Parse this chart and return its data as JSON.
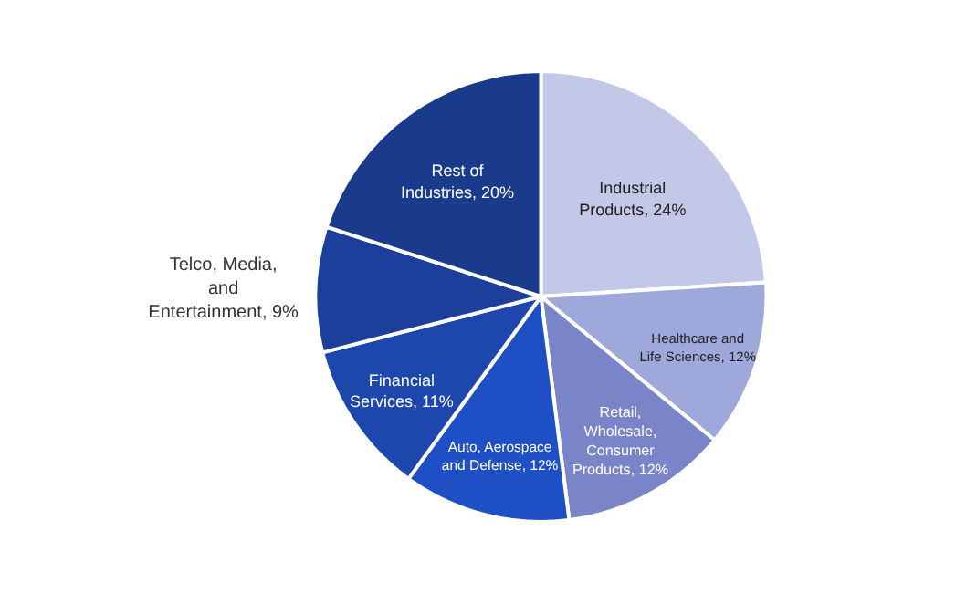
{
  "chart_data": {
    "type": "pie",
    "categories": [
      "Industrial Products",
      "Healthcare and Life Sciences",
      "Retail, Wholesale, Consumer Products",
      "Auto, Aerospace and Defense",
      "Financial Services",
      "Telco, Media, and Entertainment",
      "Rest of Industries"
    ],
    "values": [
      24,
      12,
      12,
      12,
      11,
      9,
      20
    ],
    "value_labels": [
      "24%",
      "12%",
      "12%",
      "12%",
      "11%",
      "9%",
      "20%"
    ],
    "colors": [
      "#c3c8e8",
      "#9ea8da",
      "#7985c8",
      "#1f4fc4",
      "#1d47ad",
      "#1b3f9a",
      "#1a3b8c"
    ],
    "legend": false
  }
}
